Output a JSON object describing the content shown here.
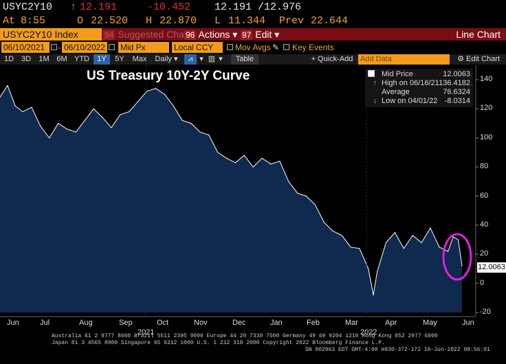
{
  "quote": {
    "symbol": "USYC2Y10",
    "last": "12.191",
    "change": "-10.452",
    "bid_ask": "12.191 /12.976",
    "at_label": "At",
    "time": "8:55",
    "open_label": "O",
    "open": "22.520",
    "high_label": "H",
    "high": "22.870",
    "low_label": "L",
    "low": "11.344",
    "prev_label": "Prev",
    "prev": "22.644"
  },
  "titlebar": {
    "ticker": "USYC2Y10 Index",
    "suggested_num": "94",
    "suggested": "Suggested Charts",
    "actions_num": "96",
    "actions": "Actions",
    "edit_num": "97",
    "edit": "Edit",
    "chart_type": "Line Chart"
  },
  "controls": {
    "start_date": "06/10/2021",
    "end_date": "06/10/2022",
    "field": "Mid Px",
    "currency": "Local CCY",
    "mov_avgs": "Mov Avgs",
    "key_events": "Key Events"
  },
  "toolbar": {
    "periods": [
      "1D",
      "3D",
      "1M",
      "6M",
      "YTD",
      "1Y",
      "5Y",
      "Max"
    ],
    "selected_period": "1Y",
    "frequency": "Daily",
    "table": "Table",
    "quick_add": "+ Quick-Add",
    "add_data_placeholder": "Add Data",
    "edit_chart": "Edit Chart"
  },
  "legend": {
    "mid_price_label": "Mid Price",
    "mid_price_value": "12.0063",
    "high_label": "High on 06/16/21",
    "high_value": "136.4182",
    "avg_label": "Average",
    "avg_value": "76.6324",
    "low_label": "Low on 04/01/22",
    "low_value": "-8.0314"
  },
  "last_value_tag": "12.0063",
  "footer": {
    "line1": "Australia 61 2 9777 8600 Brazil 5511 2395 9000 Europe 44 20 7330 7500 Germany 49 69 9204 1210 Hong Kong 852 2977 6000",
    "line2": "Japan 81 3 4565 8900       Singapore 65 6212 1000       U.S. 1 212 318 2000             Copyright 2022 Bloomberg Finance L.P.",
    "line3": "SN 802963 EDT  GMT-4:00 H930-372-172 10-Jun-2022 08:56:01"
  },
  "colors": {
    "area_fill": "#0f2a4e",
    "line": "#ffffff",
    "highlight_circle": "#e020e0",
    "amber": "#f39b1a",
    "titlebar": "#7a0c14"
  },
  "chart_data": {
    "type": "area",
    "title": "US Treasury 10Y-2Y Curve",
    "y_ticks": [
      "140",
      "120",
      "100",
      "80",
      "60",
      "40",
      "20",
      "0",
      "-20"
    ],
    "ylim": [
      -20,
      140
    ],
    "x_ticks": [
      "Jun",
      "Jul",
      "Aug",
      "Sep",
      "Oct",
      "Nov",
      "Dec",
      "Jan",
      "Feb",
      "Mar",
      "Apr",
      "May",
      "Jun"
    ],
    "year_labels": [
      "2021",
      "2022"
    ],
    "grid": false,
    "x_domain": [
      "2021-06-10",
      "2022-06-10"
    ],
    "x": [
      "2021-06-10",
      "2021-06-16",
      "2021-06-22",
      "2021-06-28",
      "2021-07-05",
      "2021-07-12",
      "2021-07-19",
      "2021-07-26",
      "2021-08-02",
      "2021-08-09",
      "2021-08-16",
      "2021-08-23",
      "2021-08-30",
      "2021-09-06",
      "2021-09-13",
      "2021-09-20",
      "2021-09-27",
      "2021-10-04",
      "2021-10-11",
      "2021-10-18",
      "2021-10-25",
      "2021-11-01",
      "2021-11-08",
      "2021-11-15",
      "2021-11-22",
      "2021-11-29",
      "2021-12-06",
      "2021-12-13",
      "2021-12-20",
      "2021-12-27",
      "2022-01-03",
      "2022-01-10",
      "2022-01-17",
      "2022-01-24",
      "2022-01-31",
      "2022-02-07",
      "2022-02-14",
      "2022-02-21",
      "2022-02-28",
      "2022-03-07",
      "2022-03-14",
      "2022-03-21",
      "2022-03-28",
      "2022-04-01",
      "2022-04-04",
      "2022-04-11",
      "2022-04-18",
      "2022-04-25",
      "2022-05-02",
      "2022-05-09",
      "2022-05-16",
      "2022-05-23",
      "2022-05-30",
      "2022-06-03",
      "2022-06-07",
      "2022-06-10"
    ],
    "values": [
      128,
      136,
      122,
      118,
      121,
      108,
      100,
      110,
      106,
      104,
      112,
      120,
      114,
      107,
      116,
      118,
      125,
      132,
      134,
      130,
      122,
      112,
      110,
      104,
      102,
      90,
      86,
      83,
      88,
      80,
      86,
      82,
      84,
      70,
      62,
      60,
      54,
      42,
      36,
      33,
      25,
      24,
      10,
      -8,
      8,
      28,
      35,
      24,
      33,
      28,
      38,
      25,
      22,
      32,
      30,
      12
    ]
  }
}
